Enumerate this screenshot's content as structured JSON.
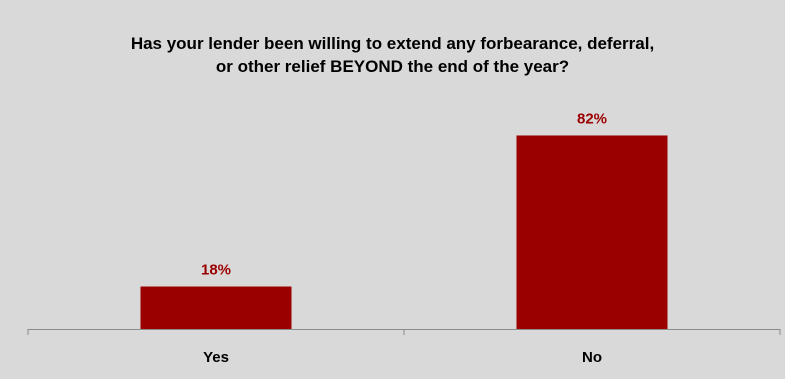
{
  "chart_data": {
    "type": "bar",
    "title_lines": [
      "Has your lender been willing to extend any forbearance, deferral,",
      "or other relief BEYOND the end of the year?"
    ],
    "categories": [
      "Yes",
      "No"
    ],
    "values": [
      18,
      82
    ],
    "data_labels": [
      "18%",
      "82%"
    ],
    "value_unit": "%",
    "ylim": [
      0,
      100
    ],
    "grid": false,
    "legend": "none",
    "bar_color": "#9b0000",
    "label_color": "#9b0000",
    "background_color": "#d9d9d9"
  }
}
